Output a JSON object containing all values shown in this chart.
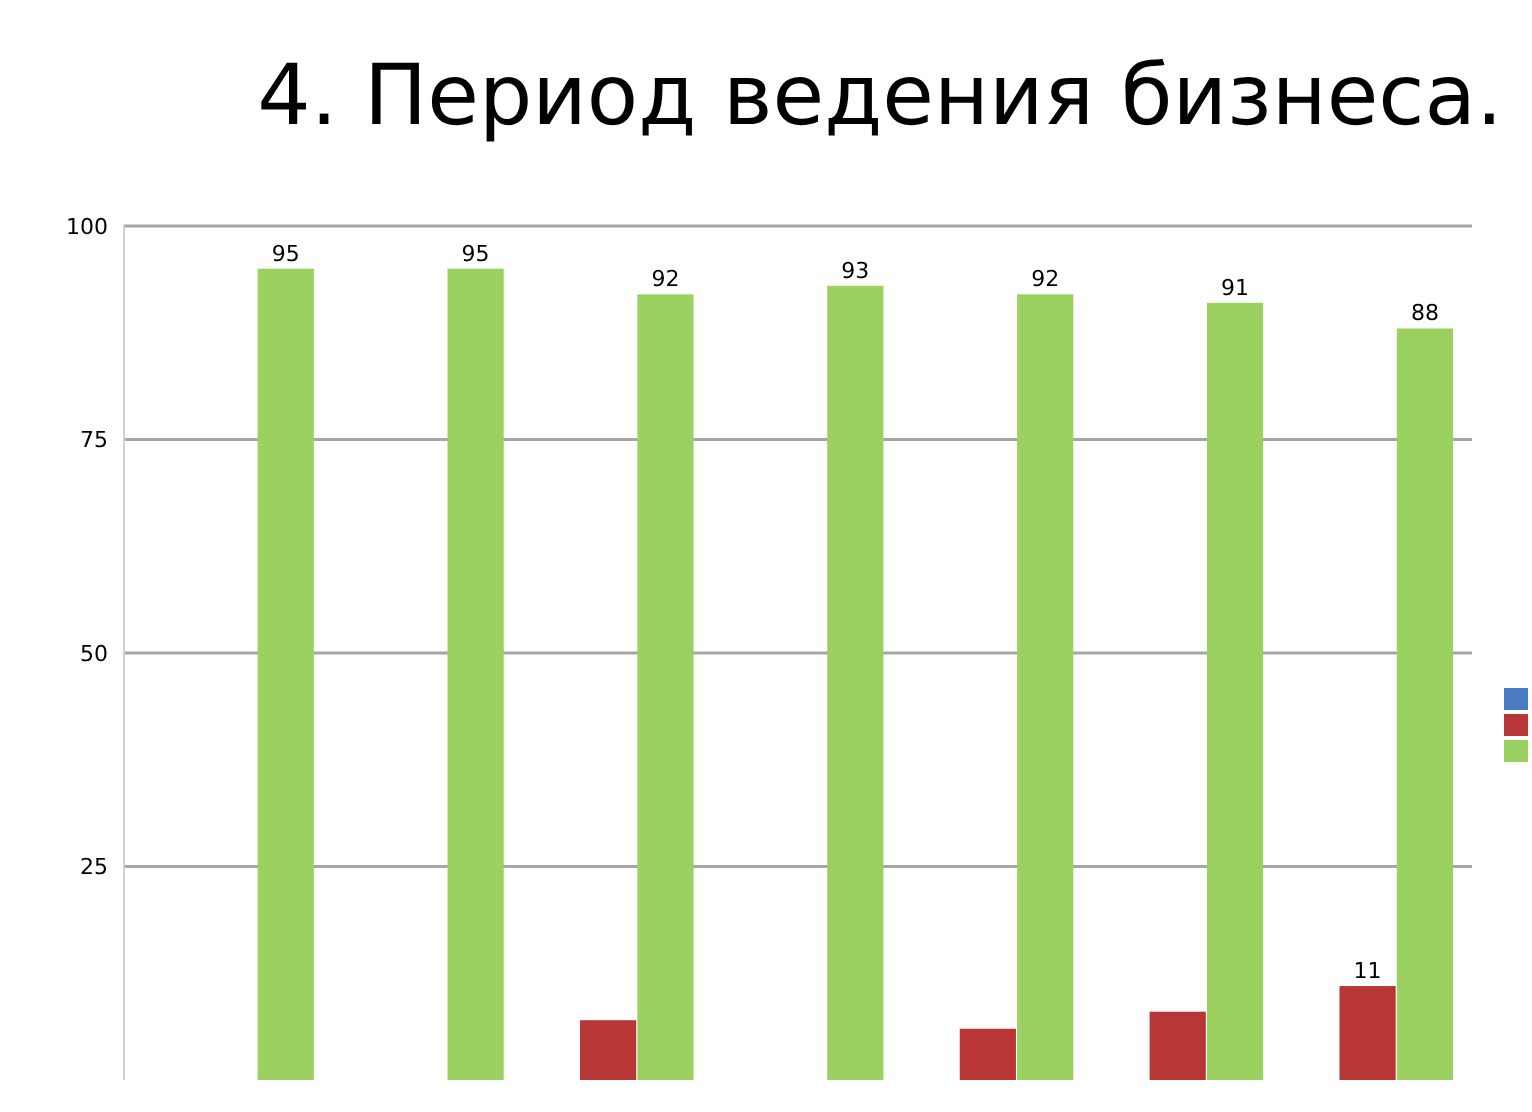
{
  "chart_data": {
    "type": "bar",
    "title": "4. Период ведения бизнеса.",
    "categories": [
      null,
      null,
      null,
      null,
      null,
      null,
      null
    ],
    "series": [
      {
        "color": "#4a7cc4",
        "values": [
          null,
          null,
          null,
          null,
          null,
          null,
          null
        ]
      },
      {
        "color": "#b83636",
        "values": [
          null,
          null,
          7,
          null,
          6,
          8,
          11
        ],
        "value_labels": [
          null,
          null,
          null,
          null,
          null,
          null,
          "11"
        ]
      },
      {
        "color": "#9bd160",
        "values": [
          95,
          95,
          92,
          93,
          92,
          91,
          88
        ],
        "value_labels": [
          "95",
          "95",
          "92",
          "93",
          "92",
          "91",
          "88"
        ]
      }
    ],
    "ylim": [
      0,
      100
    ],
    "yticks": [
      25,
      50,
      75,
      100
    ],
    "grid": "y"
  }
}
